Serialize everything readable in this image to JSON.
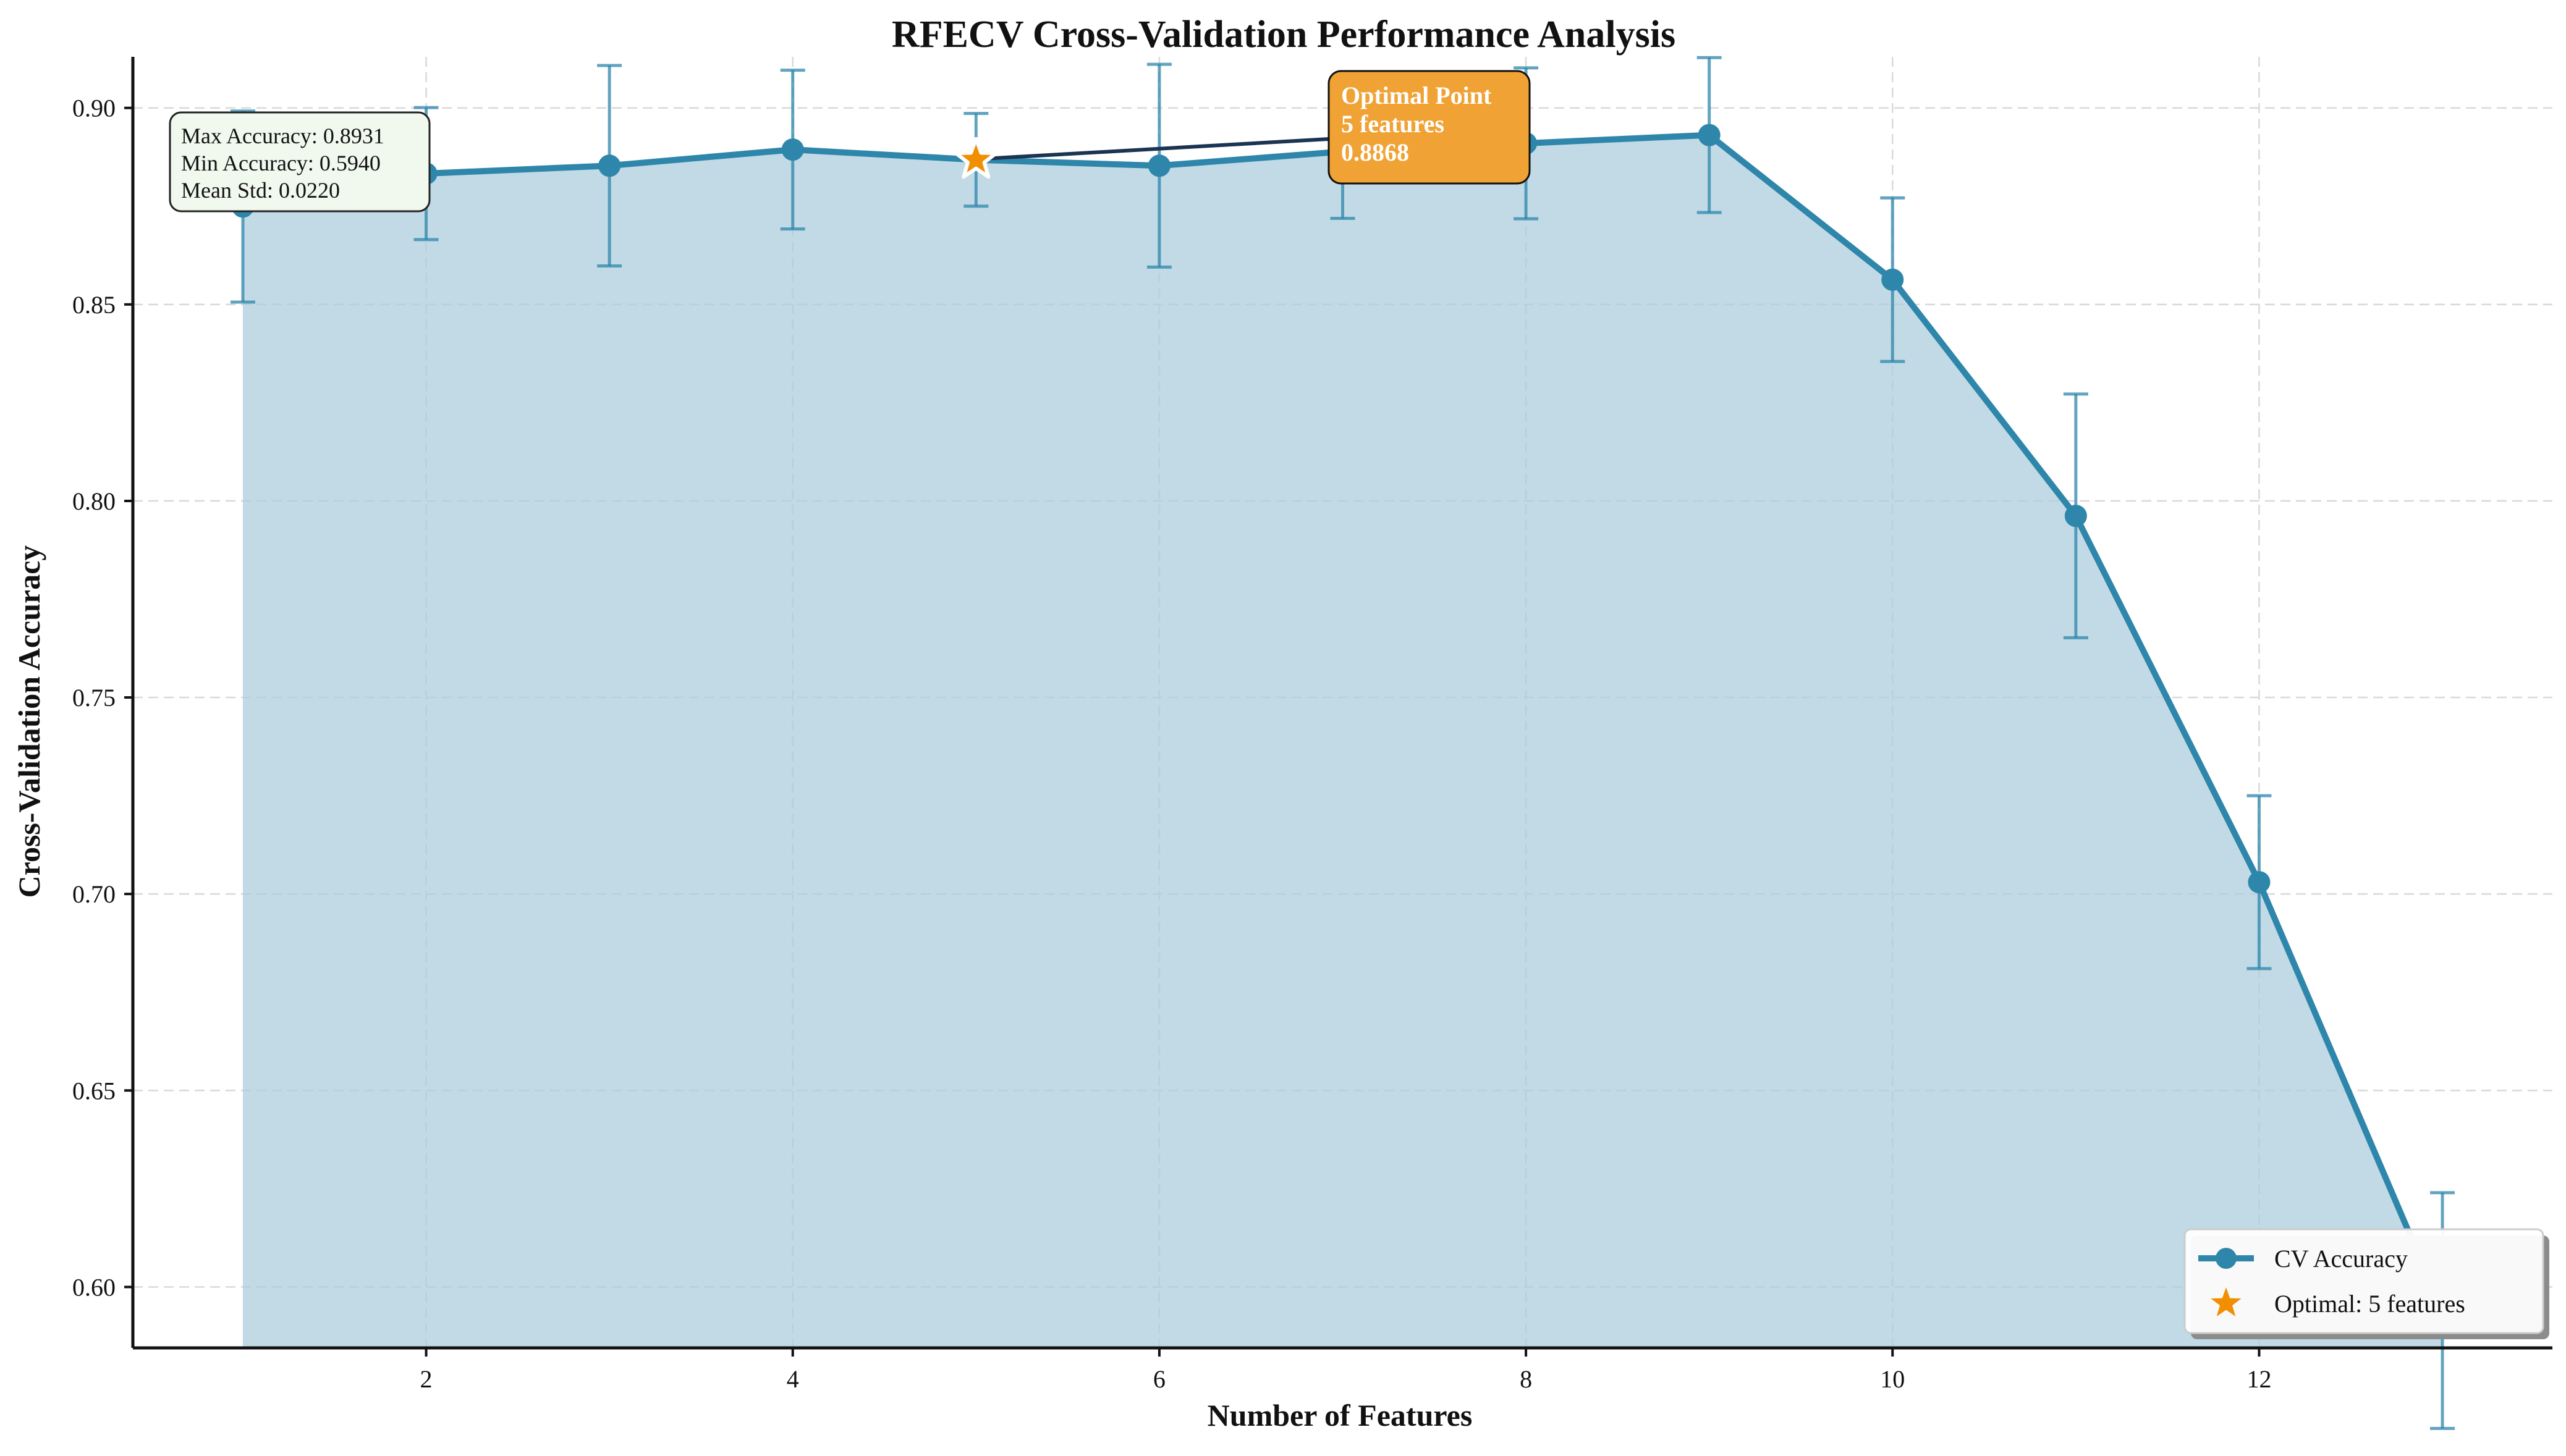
{
  "chart_data": {
    "type": "line",
    "title": "RFECV Cross-Validation Performance Analysis",
    "xlabel": "Number of Features",
    "ylabel": "Cross-Validation Accuracy",
    "xlim": [
      0.4,
      13.6
    ],
    "ylim": [
      0.5845,
      0.913
    ],
    "xticks": [
      2,
      4,
      6,
      8,
      10,
      12
    ],
    "yticks": [
      0.6,
      0.65,
      0.7,
      0.75,
      0.8,
      0.85,
      0.9
    ],
    "ytick_labels": [
      "0.60",
      "0.65",
      "0.70",
      "0.75",
      "0.80",
      "0.85",
      "0.90"
    ],
    "grid": true,
    "legend_position": "bottom-right",
    "x": [
      1,
      2,
      3,
      4,
      5,
      6,
      7,
      8,
      9,
      10,
      11,
      12,
      13
    ],
    "series": [
      {
        "name": "CV Accuracy",
        "values": [
          0.8749,
          0.8833,
          0.8853,
          0.8894,
          0.8868,
          0.8853,
          0.8889,
          0.891,
          0.8931,
          0.8563,
          0.7962,
          0.703,
          0.594
        ],
        "error": [
          0.0243,
          0.0168,
          0.0255,
          0.0202,
          0.0118,
          0.0258,
          0.017,
          0.0192,
          0.0197,
          0.0208,
          0.031,
          0.022,
          0.03
        ],
        "color": "#2E86AB",
        "fill_color": "#A9CCDC"
      }
    ],
    "optimal": {
      "x": 5,
      "y": 0.8868,
      "legend_label": "Optimal: 5 features",
      "marker_color": "#F18F01",
      "annotation_lines": [
        "Optimal Point",
        "5 features",
        "0.8868"
      ],
      "annotation_bg": "#F0A234",
      "arrow_color": "#1B3452"
    },
    "stats_box": {
      "lines": [
        "Max Accuracy: 0.8931",
        "Min Accuracy: 0.5940",
        "Mean Std: 0.0220"
      ],
      "bg": "#F1F8EE"
    }
  }
}
